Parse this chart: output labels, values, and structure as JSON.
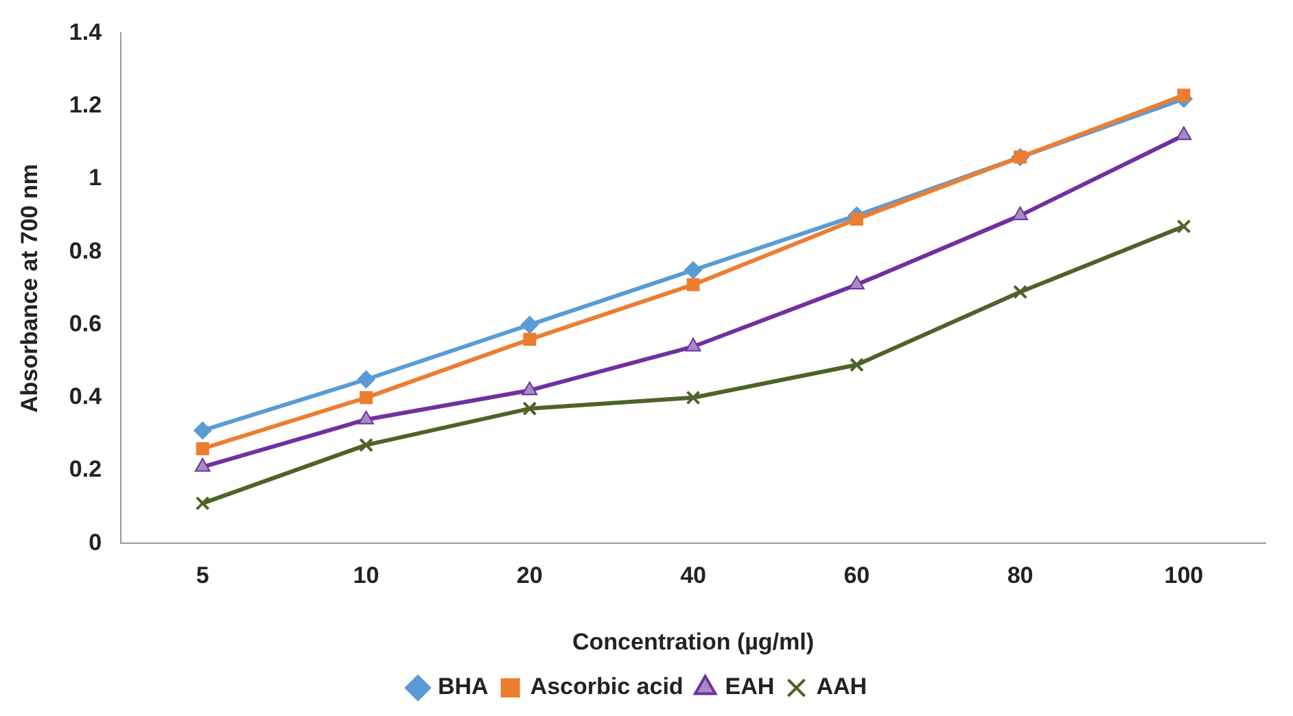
{
  "chart_data": {
    "type": "line",
    "xlabel": "Concentration (µg/ml)",
    "ylabel": "Absorbance at 700 nm",
    "categories": [
      "5",
      "10",
      "20",
      "40",
      "60",
      "80",
      "100"
    ],
    "series": [
      {
        "name": "BHA",
        "color": "#5b9bd5",
        "marker": "diamond",
        "values": [
          0.31,
          0.45,
          0.6,
          0.75,
          0.9,
          1.06,
          1.22
        ]
      },
      {
        "name": "Ascorbic acid",
        "color": "#ed7d31",
        "marker": "square",
        "values": [
          0.26,
          0.4,
          0.56,
          0.71,
          0.89,
          1.06,
          1.23
        ]
      },
      {
        "name": "EAH",
        "color": "#7030a0",
        "marker": "triangle",
        "values": [
          0.21,
          0.34,
          0.42,
          0.54,
          0.71,
          0.9,
          1.12
        ]
      },
      {
        "name": "AAH",
        "color": "#4f6228",
        "marker": "cross",
        "values": [
          0.11,
          0.27,
          0.37,
          0.4,
          0.49,
          0.69,
          0.87
        ]
      }
    ],
    "ylim": [
      0,
      1.4
    ],
    "yticks": [
      0,
      0.2,
      0.4,
      0.6,
      0.8,
      1,
      1.2,
      1.4
    ],
    "grid": false,
    "legend": "bottom",
    "line_style": "solid"
  }
}
